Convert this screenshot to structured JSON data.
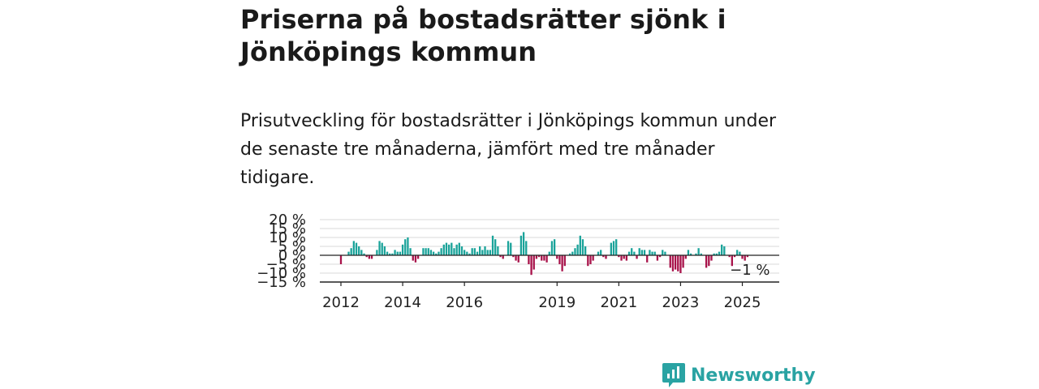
{
  "title": "Priserna på bostadsrätter sjönk i Jönköpings kommun",
  "subtitle": "Prisutveckling för bostadsrätter i Jönköpings kommun under de senaste tre månaderna, jämfört med tre månader tidigare.",
  "brand": {
    "name": "Newsworthy"
  },
  "colors": {
    "positive": "#1aa39a",
    "negative": "#a8124a",
    "grid": "#d9d9d9",
    "axis": "#222222"
  },
  "chart_data": {
    "type": "bar",
    "x_unit": "month",
    "start": "2012-01",
    "ylim": [
      -15,
      20
    ],
    "yticks": [
      20,
      15,
      10,
      5,
      0,
      -5,
      -10,
      -15
    ],
    "ytick_labels": [
      "20 %",
      "15 %",
      "10 %",
      "5 %",
      "0 %",
      "−5 %",
      "−10 %",
      "−15 %"
    ],
    "xtick_labels": [
      {
        "label": "2012",
        "month": 1
      },
      {
        "label": "2014",
        "month": 25
      },
      {
        "label": "2016",
        "month": 49
      },
      {
        "label": "2019",
        "month": 85
      },
      {
        "label": "2021",
        "month": 109
      },
      {
        "label": "2023",
        "month": 133
      },
      {
        "label": "2025",
        "month": 157
      }
    ],
    "annotation": "−1 %",
    "values": [
      -5,
      0,
      0,
      2,
      4,
      8,
      7,
      5,
      3,
      1,
      -1,
      -2,
      -2,
      0,
      3,
      8,
      7,
      5,
      2,
      1,
      1,
      3,
      2,
      2,
      6,
      9,
      10,
      4,
      -3,
      -4,
      -2,
      0,
      4,
      4,
      4,
      3,
      2,
      1,
      2,
      4,
      6,
      7,
      6,
      7,
      4,
      6,
      7,
      5,
      3,
      2,
      1,
      4,
      4,
      2,
      5,
      3,
      5,
      3,
      3,
      11,
      9,
      5,
      -1,
      -2,
      0,
      8,
      7,
      -1,
      -3,
      -4,
      11,
      13,
      8,
      -5,
      -11,
      -8,
      -2,
      -1,
      -3,
      -3,
      -4,
      2,
      8,
      9,
      -2,
      -5,
      -9,
      -6,
      0,
      1,
      2,
      4,
      6,
      11,
      9,
      5,
      -6,
      -5,
      -3,
      0,
      2,
      3,
      -1,
      -2,
      0,
      7,
      8,
      9,
      -1,
      -3,
      -2,
      -3,
      2,
      4,
      2,
      -2,
      4,
      3,
      3,
      -4,
      3,
      2,
      2,
      -3,
      -1,
      3,
      2,
      0,
      -7,
      -9,
      -8,
      -9,
      -10,
      -7,
      -2,
      3,
      1,
      0,
      1,
      4,
      1,
      0,
      -7,
      -6,
      -3,
      1,
      1,
      2,
      6,
      5,
      0,
      -1,
      -6,
      -1,
      3,
      2,
      -2,
      -3,
      -1
    ]
  }
}
